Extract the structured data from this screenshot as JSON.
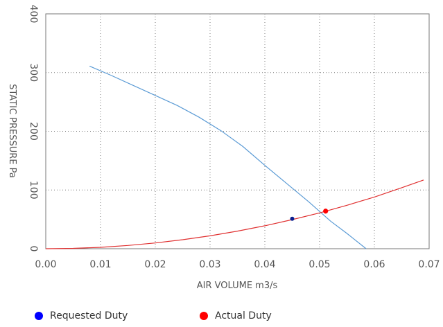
{
  "chart_data": {
    "type": "line",
    "xlabel": "AIR VOLUME m3/s",
    "ylabel": "STATIC PRESSURE Pa",
    "xlim": [
      0,
      0.07
    ],
    "ylim": [
      0,
      400
    ],
    "x_ticks": [
      "0.00",
      "0.01",
      "0.02",
      "0.03",
      "0.04",
      "0.05",
      "0.06",
      "0.07"
    ],
    "y_ticks": [
      "0",
      "100",
      "200",
      "300",
      "400"
    ],
    "grid": true,
    "legend_position": "bottom",
    "series": [
      {
        "color": "#5b9bd5",
        "points": [
          [
            0.008,
            311
          ],
          [
            0.012,
            295
          ],
          [
            0.016,
            278
          ],
          [
            0.02,
            261
          ],
          [
            0.024,
            244
          ],
          [
            0.028,
            224
          ],
          [
            0.032,
            201
          ],
          [
            0.036,
            174
          ],
          [
            0.04,
            142
          ],
          [
            0.044,
            111
          ],
          [
            0.048,
            80
          ],
          [
            0.052,
            47
          ],
          [
            0.055,
            26
          ],
          [
            0.0585,
            0
          ]
        ]
      },
      {
        "color": "#e03030",
        "points": [
          [
            0.0,
            0
          ],
          [
            0.005,
            0.6
          ],
          [
            0.01,
            2.4
          ],
          [
            0.015,
            5.5
          ],
          [
            0.02,
            9.8
          ],
          [
            0.025,
            15.3
          ],
          [
            0.03,
            22
          ],
          [
            0.035,
            30
          ],
          [
            0.04,
            39
          ],
          [
            0.045,
            49.6
          ],
          [
            0.05,
            61
          ],
          [
            0.055,
            74
          ],
          [
            0.06,
            88
          ],
          [
            0.065,
            104
          ],
          [
            0.069,
            117
          ]
        ]
      }
    ],
    "markers": [
      {
        "name": "Requested Duty",
        "x": 0.045,
        "y": 51,
        "color": "#0a1f8f"
      },
      {
        "name": "Actual Duty",
        "x": 0.0511,
        "y": 64,
        "color": "#ff0000"
      }
    ]
  },
  "legend": {
    "items": [
      {
        "label": "Requested Duty",
        "color": "#0000ff"
      },
      {
        "label": "Actual Duty",
        "color": "#ff0000"
      }
    ]
  }
}
